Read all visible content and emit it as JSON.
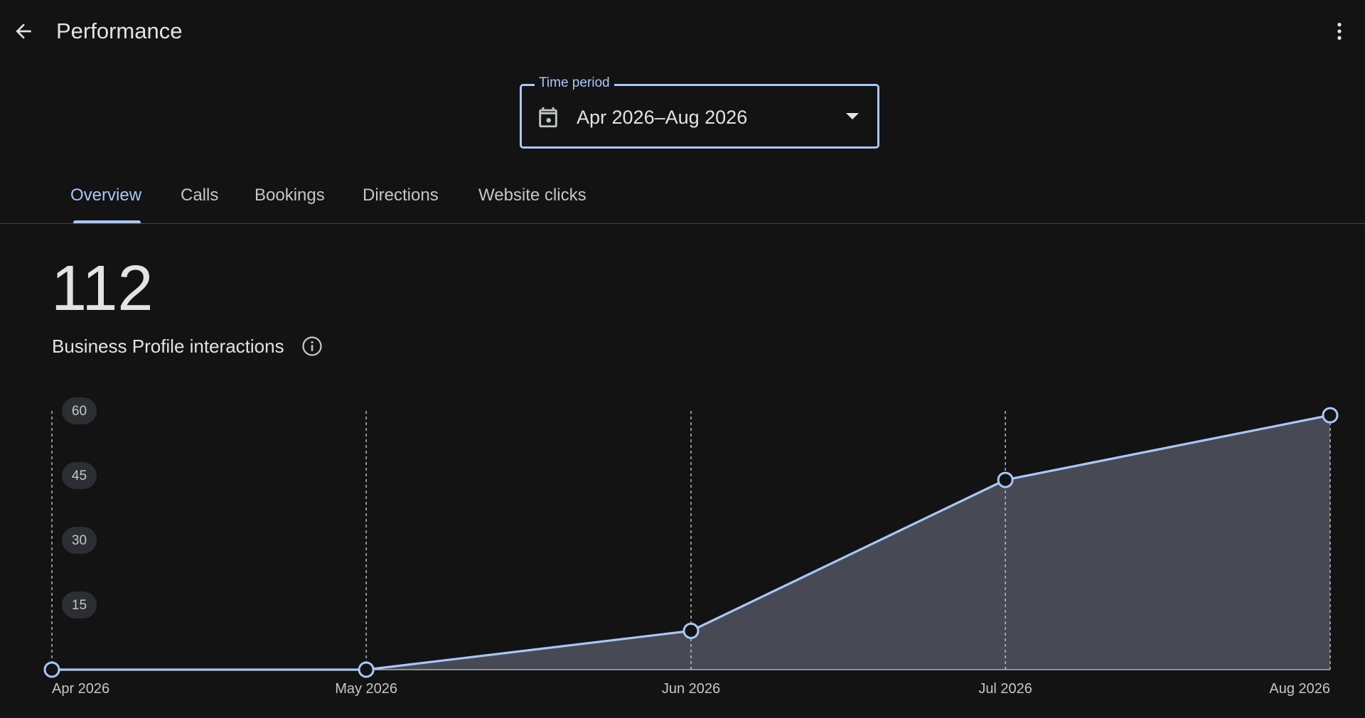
{
  "header": {
    "title": "Performance",
    "back_icon": "arrow-back-icon",
    "more_icon": "more-vert-icon"
  },
  "time_period": {
    "label": "Time period",
    "value": "Apr 2026–Aug 2026",
    "icon": "calendar-icon"
  },
  "tabs": [
    {
      "label": "Overview",
      "active": true
    },
    {
      "label": "Calls",
      "active": false
    },
    {
      "label": "Bookings",
      "active": false
    },
    {
      "label": "Directions",
      "active": false
    },
    {
      "label": "Website clicks",
      "active": false
    }
  ],
  "summary": {
    "value": "112",
    "label": "Business Profile interactions",
    "info_icon": "info-icon"
  },
  "colors": {
    "background": "#131314",
    "accent": "#a8c7fa",
    "area_fill": "#474a54"
  },
  "chart_data": {
    "type": "area",
    "x": [
      "Apr 2026",
      "May 2026",
      "Jun 2026",
      "Jul 2026",
      "Aug 2026"
    ],
    "x_dates": [
      "2026-04-01",
      "2026-05-01",
      "2026-06-01",
      "2026-07-01",
      "2026-08-01"
    ],
    "values": [
      0,
      0,
      9,
      44,
      59
    ],
    "y_ticks": [
      15,
      30,
      45,
      60
    ],
    "ylim": [
      0,
      60
    ],
    "grid": "vertical-dashed",
    "legend": "none"
  }
}
